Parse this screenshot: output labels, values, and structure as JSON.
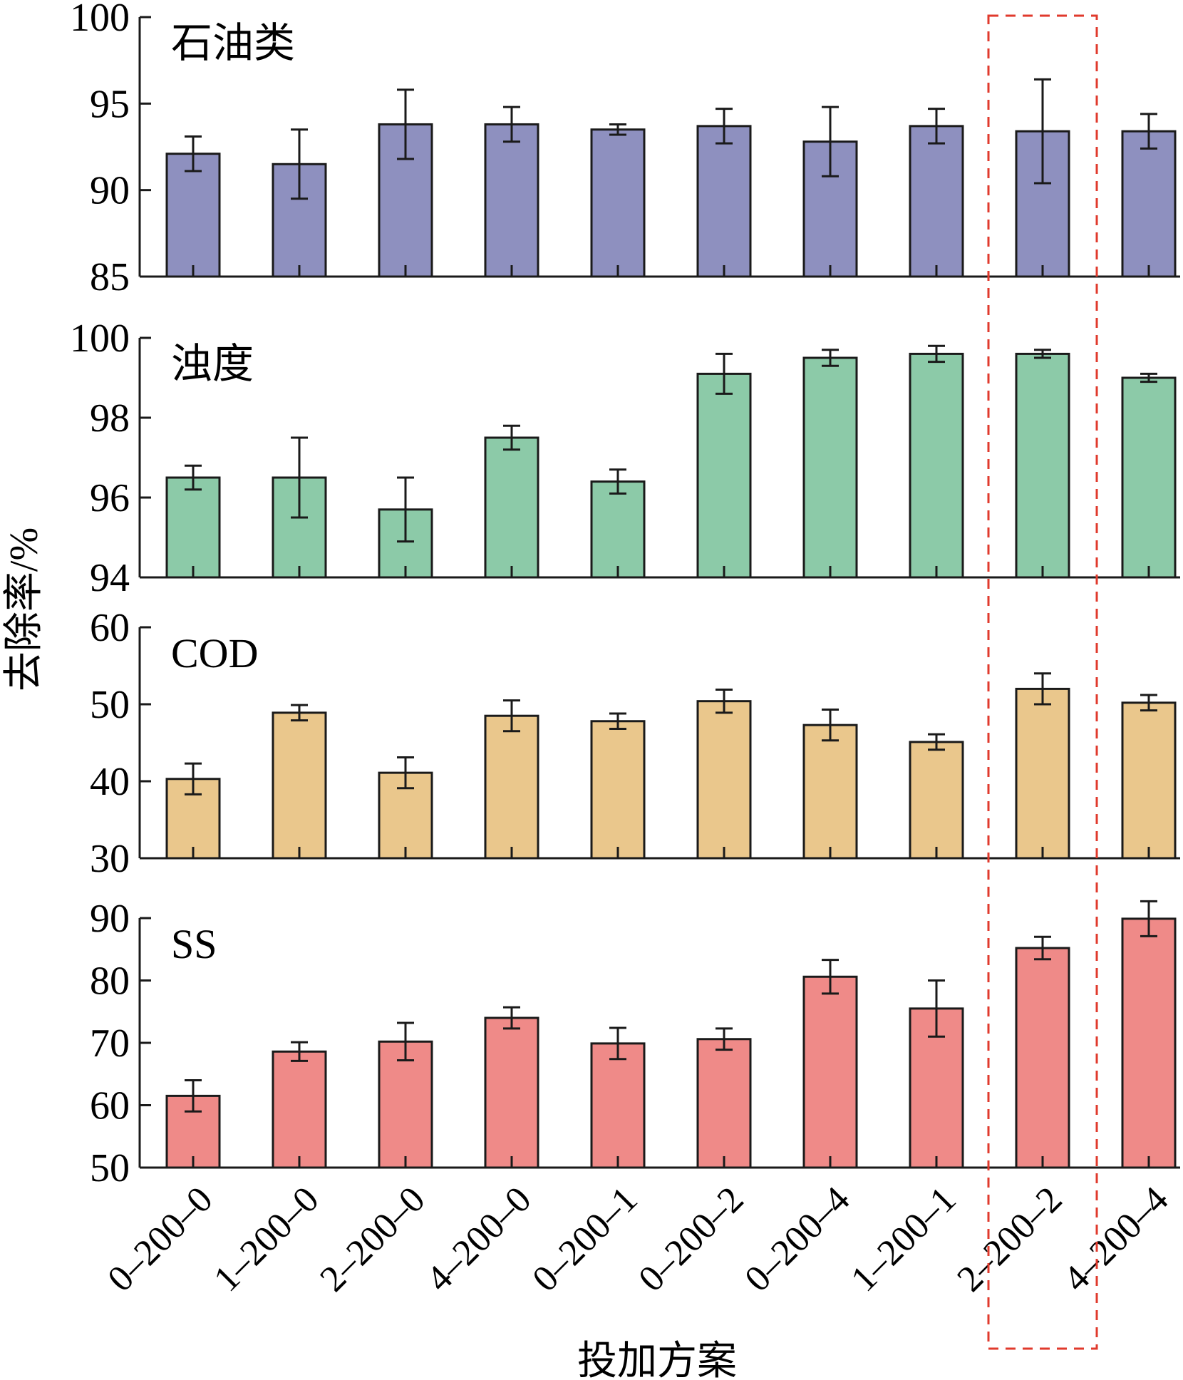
{
  "chart_data": {
    "type": "bar",
    "categories": [
      "0–200–0",
      "1–200–0",
      "2–200–0",
      "4–200–0",
      "0–200–1",
      "0–200–2",
      "0–200–4",
      "1–200–1",
      "2–200–2",
      "4–200–4"
    ],
    "xlabel": "投加方案",
    "ylabel": "去除率/%",
    "highlight": {
      "category": "2–200–2",
      "style": "dashed box",
      "color": "#e03a2c"
    },
    "panels": [
      {
        "label": "石油类",
        "color": "#8e90bf",
        "ylim": [
          85,
          100
        ],
        "yticks": [
          85,
          90,
          95,
          100
        ],
        "values": [
          92.1,
          91.5,
          93.8,
          93.8,
          93.5,
          93.7,
          92.8,
          93.7,
          93.4,
          93.4
        ],
        "errors": [
          1.0,
          2.0,
          2.0,
          1.0,
          0.3,
          1.0,
          2.0,
          1.0,
          3.0,
          1.0
        ]
      },
      {
        "label": "浊度",
        "color": "#8ccaa8",
        "ylim": [
          94,
          100
        ],
        "yticks": [
          94,
          96,
          98,
          100
        ],
        "values": [
          96.5,
          96.5,
          95.7,
          97.5,
          96.4,
          99.1,
          99.5,
          99.6,
          99.6,
          99.0
        ],
        "errors": [
          0.3,
          1.0,
          0.8,
          0.3,
          0.3,
          0.5,
          0.2,
          0.2,
          0.1,
          0.1
        ]
      },
      {
        "label": "COD",
        "color": "#eac78c",
        "ylim": [
          30,
          60
        ],
        "yticks": [
          30,
          40,
          50,
          60
        ],
        "values": [
          40.3,
          48.9,
          41.1,
          48.5,
          47.8,
          50.4,
          47.3,
          45.1,
          52.0,
          50.2
        ],
        "errors": [
          2.0,
          1.0,
          2.0,
          2.0,
          1.0,
          1.5,
          2.0,
          1.0,
          2.0,
          1.0
        ]
      },
      {
        "label": "SS",
        "color": "#ef8a88",
        "ylim": [
          50,
          90
        ],
        "yticks": [
          50,
          60,
          70,
          80,
          90
        ],
        "values": [
          61.5,
          68.6,
          70.2,
          74.0,
          69.9,
          70.6,
          80.6,
          75.5,
          85.2,
          89.9
        ],
        "errors": [
          2.5,
          1.5,
          3.0,
          1.7,
          2.5,
          1.7,
          2.7,
          4.5,
          1.8,
          2.8
        ]
      }
    ]
  }
}
